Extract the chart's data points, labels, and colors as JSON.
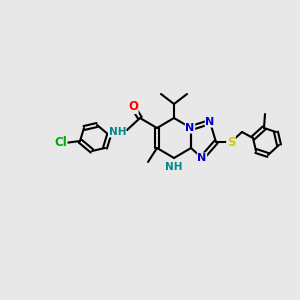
{
  "background_color": "#e8e8e8",
  "bond_color": "#000000",
  "bond_width": 1.5,
  "atom_colors": {
    "N": "#0000cc",
    "O": "#ff0000",
    "S": "#cccc00",
    "Cl": "#00aa00",
    "H": "#008888"
  },
  "font_size": 7.5
}
